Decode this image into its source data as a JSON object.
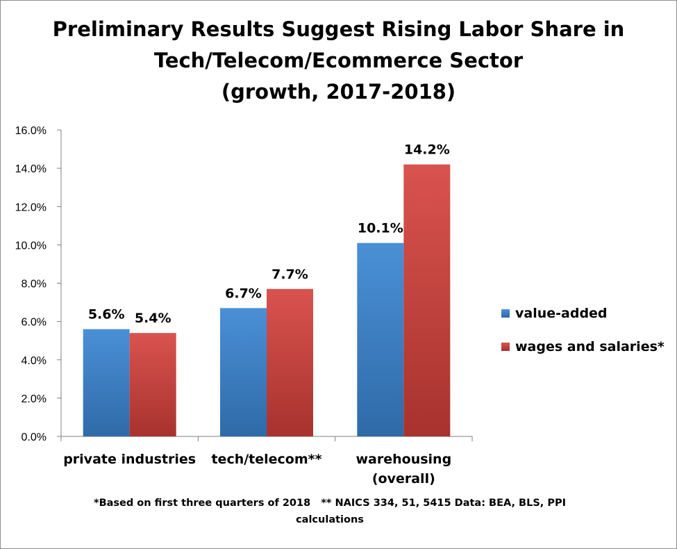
{
  "chart_data": {
    "type": "bar",
    "title_lines": [
      "Preliminary Results Suggest Rising Labor Share in",
      "Tech/Telecom/Ecommerce Sector",
      "(growth, 2017-2018)"
    ],
    "categories": [
      [
        "private industries"
      ],
      [
        "tech/telecom**"
      ],
      [
        "warehousing",
        "(overall)"
      ]
    ],
    "series": [
      {
        "name": "value-added",
        "values": [
          5.6,
          6.7,
          10.1
        ],
        "labels": [
          "5.6%",
          "6.7%",
          "10.1%"
        ],
        "color": "#4a90d6",
        "color_dark": "#2f6aa8"
      },
      {
        "name": "wages and salaries*",
        "values": [
          5.4,
          7.7,
          14.2
        ],
        "labels": [
          "5.4%",
          "7.7%",
          "14.2%"
        ],
        "color": "#d9534f",
        "color_dark": "#a8322e"
      }
    ],
    "ylim": [
      0,
      16
    ],
    "yticks": [
      "0.0%",
      "2.0%",
      "4.0%",
      "6.0%",
      "8.0%",
      "10.0%",
      "12.0%",
      "14.0%",
      "16.0%"
    ],
    "ytick_values": [
      0,
      2,
      4,
      6,
      8,
      10,
      12,
      14,
      16
    ],
    "grid": false,
    "legend_position": "right"
  },
  "footnote": {
    "line1": "*Based on first three quarters of 2018   ** NAICS 334, 51, 5415 Data: BEA, BLS, PPI",
    "line2": "calculations"
  }
}
